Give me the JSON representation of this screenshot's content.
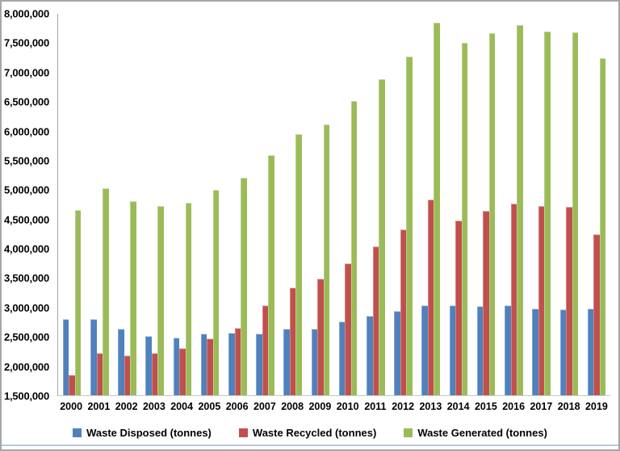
{
  "chart_data": {
    "type": "bar",
    "title": "",
    "xlabel": "",
    "ylabel": "",
    "ylim": [
      1500000,
      8000000
    ],
    "ytick_step": 500000,
    "grid": false,
    "legend_position": "bottom-center",
    "categories": [
      "2000",
      "2001",
      "2002",
      "2003",
      "2004",
      "2005",
      "2006",
      "2007",
      "2008",
      "2009",
      "2010",
      "2011",
      "2012",
      "2013",
      "2014",
      "2015",
      "2016",
      "2017",
      "2018",
      "2019"
    ],
    "series": [
      {
        "name": "Waste Disposed (tonnes)",
        "color": "#4f81bd",
        "values": [
          2790000,
          2790000,
          2630000,
          2500000,
          2480000,
          2550000,
          2560000,
          2550000,
          2630000,
          2630000,
          2750000,
          2850000,
          2930000,
          3030000,
          3030000,
          3010000,
          3030000,
          2980000,
          2960000,
          2970000
        ]
      },
      {
        "name": "Waste Recycled (tonnes)",
        "color": "#c0504d",
        "values": [
          1850000,
          2220000,
          2170000,
          2220000,
          2300000,
          2470000,
          2650000,
          3030000,
          3330000,
          3480000,
          3740000,
          4030000,
          4330000,
          4830000,
          4470000,
          4640000,
          4770000,
          4720000,
          4710000,
          4240000
        ]
      },
      {
        "name": "Waste Generated (tonnes)",
        "color": "#9bbb59",
        "values": [
          4650000,
          5030000,
          4800000,
          4720000,
          4780000,
          5000000,
          5210000,
          5590000,
          5950000,
          6110000,
          6510000,
          6890000,
          7270000,
          7850000,
          7510000,
          7670000,
          7810000,
          7700000,
          7690000,
          7240000
        ]
      }
    ]
  }
}
